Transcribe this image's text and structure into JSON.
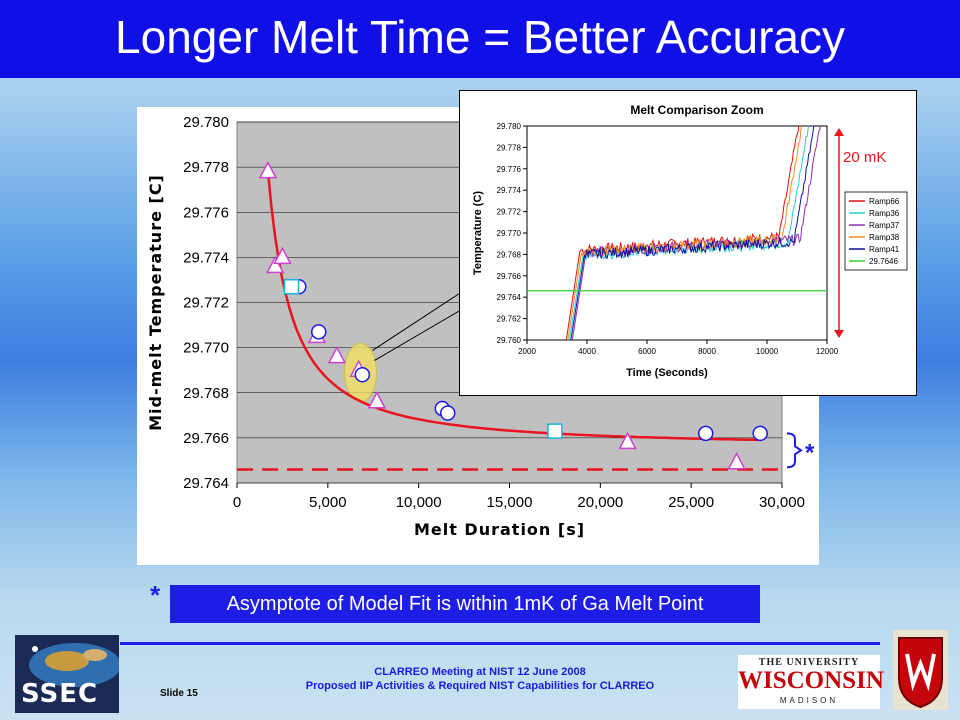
{
  "slide": {
    "title": "Longer Melt Time = Better Accuracy",
    "note": "Asymptote of Model Fit is within 1mK of Ga Melt Point",
    "note_marker": "*",
    "footer_line1": "CLARREO Meeting at NIST 12 June 2008",
    "footer_line2": "Proposed IIP Activities & Required NIST Capabilities for CLARREO",
    "slide_number": "Slide 15",
    "logo_left": "SSEC",
    "logo_right": {
      "line1": "THE UNIVERSITY",
      "line2": "WISCONSIN",
      "line3": "MADISON"
    },
    "colors": {
      "title_bar": "#1010e6",
      "note_box": "#1d1de6",
      "fit_curve": "#e8141e",
      "asymptote": "#e8141e"
    }
  },
  "chart_data": [
    {
      "type": "scatter",
      "title": "",
      "xlabel": "Melt Duration [s]",
      "ylabel": "Mid-melt Temperature [C]",
      "xlim": [
        0,
        30000
      ],
      "ylim": [
        29.764,
        29.78
      ],
      "x_ticks": [
        "0",
        "5,000",
        "10,000",
        "15,000",
        "20,000",
        "25,000",
        "30,000"
      ],
      "y_ticks": [
        "29.764",
        "29.766",
        "29.768",
        "29.770",
        "29.772",
        "29.774",
        "29.776",
        "29.778",
        "29.780"
      ],
      "grid": true,
      "series": [
        {
          "marker": "triangle",
          "color": "#d040d0",
          "points": [
            [
              1700,
              29.7778
            ],
            [
              2100,
              29.7736
            ],
            [
              2500,
              29.774
            ],
            [
              4400,
              29.7705
            ],
            [
              5500,
              29.7696
            ],
            [
              6700,
              29.769
            ],
            [
              7700,
              29.7676
            ],
            [
              21500,
              29.7658
            ],
            [
              27500,
              29.7649
            ]
          ]
        },
        {
          "marker": "circle",
          "color": "#1a1ae0",
          "points": [
            [
              3400,
              29.7727
            ],
            [
              4500,
              29.7707
            ],
            [
              6900,
              29.7688
            ],
            [
              11300,
              29.7673
            ],
            [
              11600,
              29.7671
            ],
            [
              25800,
              29.7662
            ],
            [
              28800,
              29.7662
            ]
          ]
        },
        {
          "marker": "square",
          "color": "#1ab0e0",
          "points": [
            [
              3000,
              29.7727
            ],
            [
              17500,
              29.7663
            ]
          ]
        }
      ],
      "fit_curve": {
        "asymptote": 29.7656
      },
      "dashed_line": 29.7646,
      "bracket_label": "*",
      "highlight": {
        "x": 6800,
        "y": 29.7689
      }
    },
    {
      "type": "line",
      "title": "Melt Comparison Zoom",
      "xlabel": "Time (Seconds)",
      "ylabel": "Temperature (C)",
      "xlim": [
        2000,
        12000
      ],
      "ylim": [
        29.76,
        29.78
      ],
      "x_ticks": [
        "2000",
        "4000",
        "6000",
        "8000",
        "10000",
        "12000"
      ],
      "y_ticks": [
        "29.760",
        "29.762",
        "29.764",
        "29.766",
        "29.768",
        "29.770",
        "29.772",
        "29.774",
        "29.776",
        "29.778",
        "29.780"
      ],
      "series": [
        {
          "name": "Ramp66",
          "color": "#e01010",
          "start": 3300,
          "plateau": 29.769,
          "end": 10400
        },
        {
          "name": "Ramp36",
          "color": "#20d0d0",
          "start": 3400,
          "plateau": 29.7685,
          "end": 10700
        },
        {
          "name": "Ramp37",
          "color": "#9030b0",
          "start": 3500,
          "plateau": 29.7688,
          "end": 11100
        },
        {
          "name": "Ramp38",
          "color": "#f09020",
          "start": 3350,
          "plateau": 29.7688,
          "end": 10500
        },
        {
          "name": "Ramp41",
          "color": "#1010a0",
          "start": 3450,
          "plateau": 29.7686,
          "end": 10900
        },
        {
          "name": "29.7646",
          "color": "#30d030",
          "constant": 29.7646
        }
      ],
      "range_label": "20 mK"
    }
  ]
}
